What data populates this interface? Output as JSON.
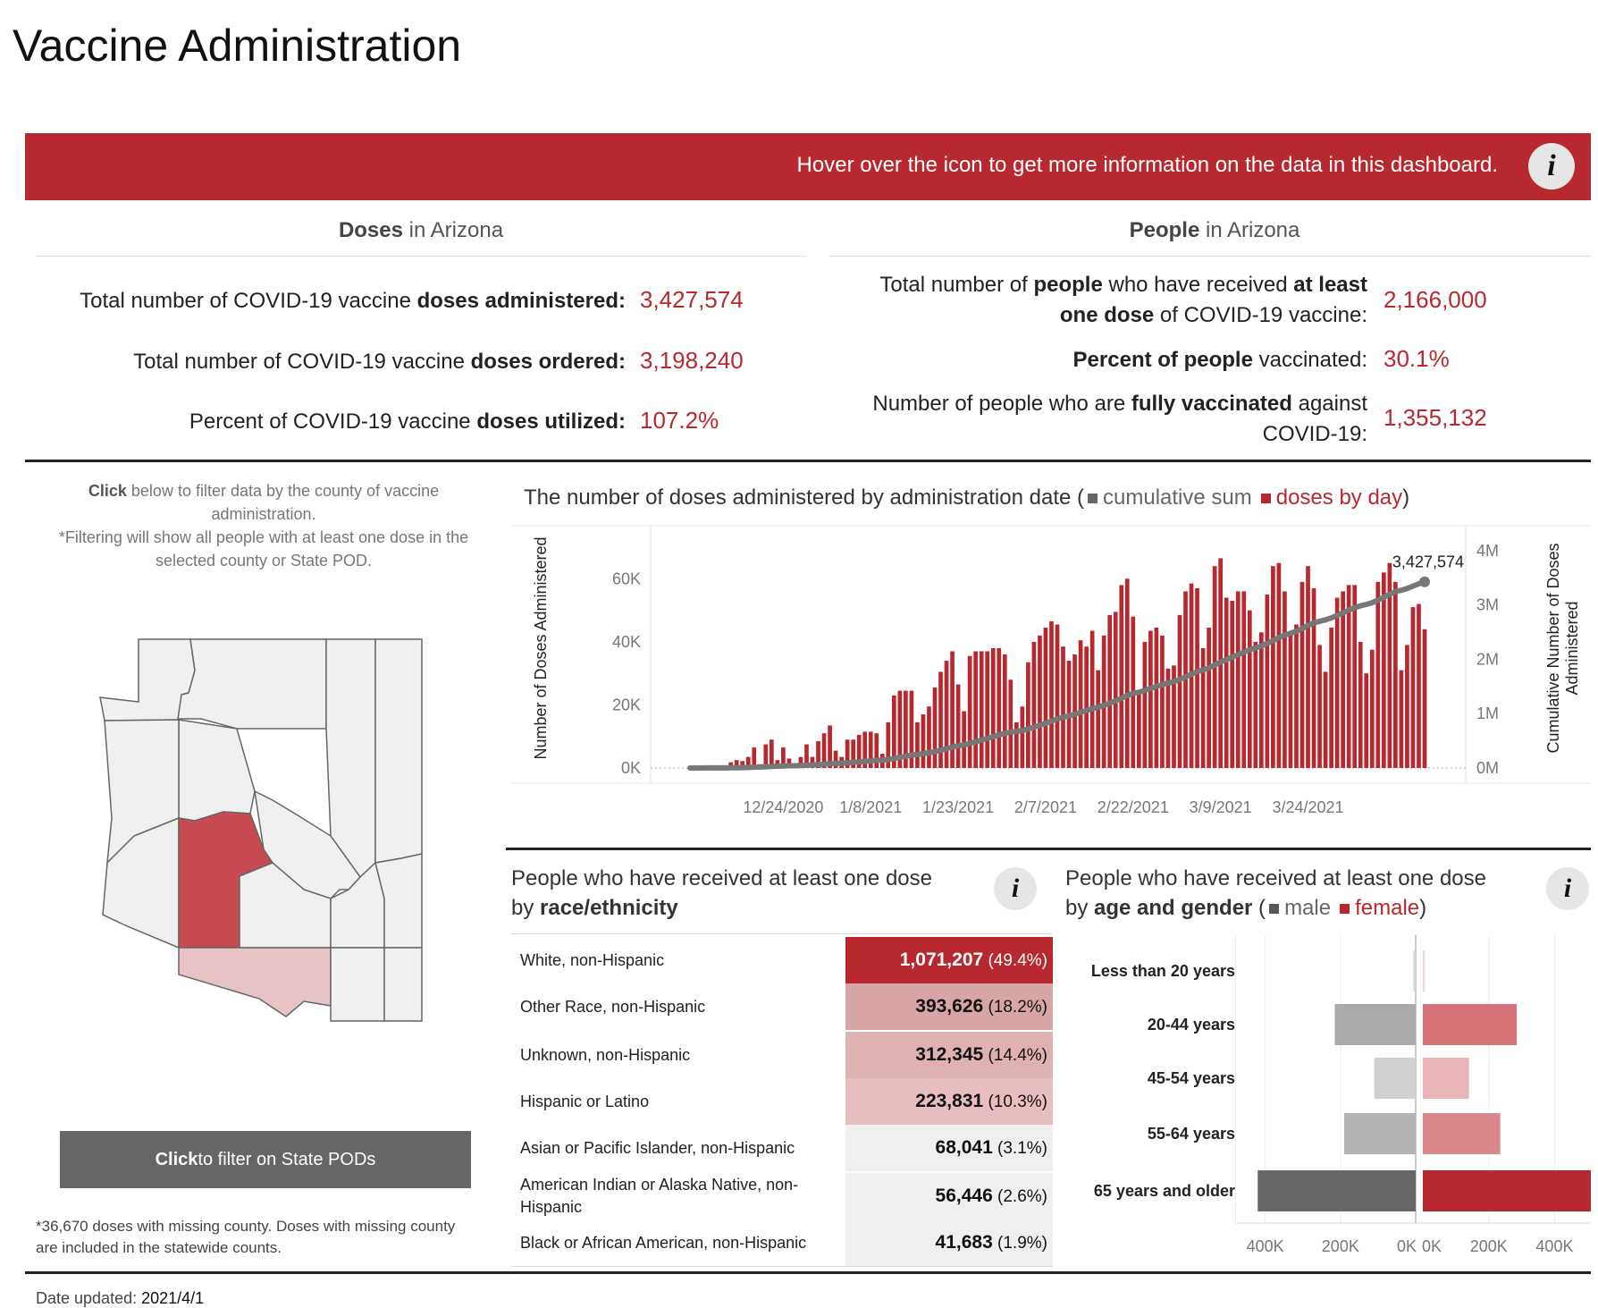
{
  "page_title": "Vaccine Administration",
  "banner": {
    "text": "Hover over the icon to get more information on the data in this dashboard.",
    "icon": "info-icon"
  },
  "doses_section": {
    "title_bold": "Doses",
    "title_rest": " in Arizona",
    "kpis": [
      {
        "pre": "Total number of COVID-19 vaccine ",
        "bold": "doses administered:",
        "value": "3,427,574"
      },
      {
        "pre": "Total number of COVID-19 vaccine ",
        "bold": "doses ordered:",
        "value": "3,198,240"
      },
      {
        "pre": "Percent of COVID-19 vaccine ",
        "bold": "doses utilized:",
        "value": "107.2%"
      }
    ]
  },
  "people_section": {
    "title_bold": "People",
    "title_rest": " in Arizona",
    "kpi1": {
      "l1a": "Total number of ",
      "l1b": "people",
      "l1c": " who have received ",
      "l1d": "at least",
      "l2a": "one dose",
      "l2b": " of COVID-19 vaccine:",
      "value": "2,166,000"
    },
    "kpi2": {
      "bold": "Percent of people",
      "rest": " vaccinated:",
      "value": "30.1%"
    },
    "kpi3": {
      "l1a": "Number of people who are ",
      "l1b": "fully vaccinated",
      "l1c": " against",
      "l2": "COVID-19:",
      "value": "1,355,132"
    }
  },
  "map_panel": {
    "note_bold": "Click",
    "note_rest": " below to filter data by the county of vaccine administration.",
    "note2": "*Filtering will show all people with at least one dose in the selected county or State POD.",
    "button_bold": "Click",
    "button_rest": " to filter on State PODs",
    "missing_note": "*36,670  doses with missing county. Doses with missing county are included in the statewide counts."
  },
  "colors": {
    "accent": "#b8292f",
    "gray_series": "#777777",
    "male": "#555555",
    "female": "#b8292f"
  },
  "chart_data": [
    {
      "type": "bar",
      "title_pre": "The number of doses administered by administration date (",
      "legend": [
        {
          "label": "cumulative sum",
          "color": "#666666"
        },
        {
          "label": "doses by day",
          "color": "#b8292f"
        }
      ],
      "title_post": ")",
      "ylabel": "Number of Doses Administered",
      "y2label_l1": "Cumulative Number of Doses",
      "y2label_l2": "Administered",
      "ylim": [
        0,
        72000
      ],
      "y_ticks": [
        "0K",
        "20K",
        "40K",
        "60K"
      ],
      "y2lim": [
        0,
        4180000
      ],
      "y2_ticks": [
        "0M",
        "1M",
        "2M",
        "3M",
        "4M"
      ],
      "x_ticks": [
        "12/24/2020",
        "1/8/2021",
        "1/23/2021",
        "2/7/2021",
        "2/22/2021",
        "3/9/2021",
        "3/24/2021"
      ],
      "last_label": "3,427,574",
      "daily_values": [
        200,
        250,
        300,
        350,
        300,
        350,
        400,
        1800,
        2500,
        2200,
        3500,
        6500,
        1200,
        7500,
        9000,
        2500,
        6500,
        3000,
        1200,
        3500,
        7500,
        3500,
        8500,
        11000,
        13500,
        5500,
        3500,
        9000,
        9000,
        10500,
        11500,
        11500,
        11000,
        4500,
        14500,
        23000,
        24500,
        24500,
        24500,
        14500,
        17000,
        19500,
        25500,
        30500,
        34000,
        37000,
        26500,
        18000,
        35500,
        37000,
        37000,
        37000,
        38000,
        38000,
        36000,
        28000,
        14500,
        19500,
        33500,
        40000,
        42000,
        44500,
        46500,
        45500,
        38500,
        34000,
        36000,
        40500,
        38500,
        43500,
        31000,
        42000,
        48500,
        49500,
        58000,
        60000,
        48000,
        24000,
        40000,
        43500,
        44500,
        42000,
        31500,
        32500,
        48500,
        56000,
        58500,
        57000,
        38000,
        44500,
        64000,
        66500,
        54000,
        53000,
        56000,
        56000,
        50000,
        40000,
        43000,
        55000,
        64000,
        65000,
        56000,
        43000,
        45500,
        59000,
        64000,
        57000,
        39000,
        30500,
        44500,
        54000,
        56000,
        58000,
        58000,
        40000,
        30000,
        37500,
        59000,
        62000,
        65000,
        59000,
        31000,
        39000,
        51000,
        52000,
        44000
      ]
    },
    {
      "type": "table",
      "title_l1": "People who have received at least one dose",
      "title_pre": "by ",
      "title_bold": "race/ethnicity",
      "rows": [
        {
          "name": "White, non-Hispanic",
          "value": "1,071,207",
          "pct": "(49.4%)",
          "share": 49.4
        },
        {
          "name": "Other Race, non-Hispanic",
          "value": "393,626",
          "pct": "(18.2%)",
          "share": 18.2
        },
        {
          "name": "Unknown, non-Hispanic",
          "value": "312,345",
          "pct": "(14.4%)",
          "share": 14.4
        },
        {
          "name": "Hispanic or Latino",
          "value": "223,831",
          "pct": "(10.3%)",
          "share": 10.3
        },
        {
          "name": "Asian or Pacific Islander, non-Hispanic",
          "value": "68,041",
          "pct": "(3.1%)",
          "share": 3.1
        },
        {
          "name": "American Indian or Alaska Native, non-Hispanic",
          "value": "56,446",
          "pct": "(2.6%)",
          "share": 2.6
        },
        {
          "name": "Black or African American, non-Hispanic",
          "value": "41,683",
          "pct": "(1.9%)",
          "share": 1.9
        }
      ]
    },
    {
      "type": "bar",
      "orientation": "horizontal-butterfly",
      "title_l1": "People who have received at least one dose",
      "title_pre": "by ",
      "title_bold": "age and gender",
      "title_paren_open": " (",
      "male_label": "male",
      "female_label": "female",
      "title_paren_close": ")",
      "categories": [
        "Less than 20 years",
        "20-44 years",
        "45-54 years",
        "55-64 years",
        "65 years and older"
      ],
      "series": [
        {
          "name": "male",
          "values": [
            6000,
            215000,
            110000,
            190000,
            420000
          ]
        },
        {
          "name": "female",
          "values": [
            6000,
            285000,
            140000,
            235000,
            510000
          ]
        }
      ],
      "xlim": [
        -480000,
        510000
      ],
      "x_ticks_left": [
        "400K",
        "200K",
        "0K"
      ],
      "x_ticks_right": [
        "0K",
        "200K",
        "400K"
      ]
    }
  ],
  "footer": {
    "label": "Date updated:",
    "value": "2021/4/1"
  }
}
